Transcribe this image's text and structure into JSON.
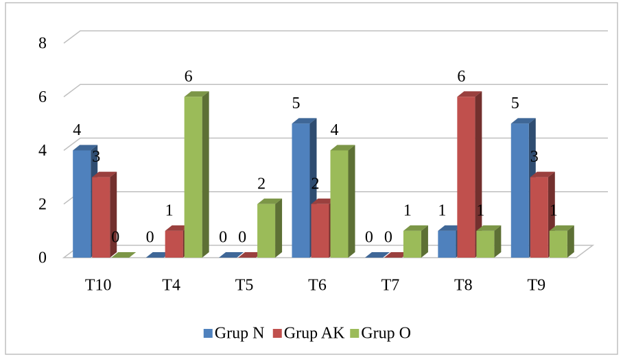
{
  "chart_data": {
    "type": "bar3d",
    "categories": [
      "T10",
      "T4",
      "T5",
      "T6",
      "T7",
      "T8",
      "T9"
    ],
    "series": [
      {
        "name": "Grup N",
        "color": "#4f81bd",
        "values": [
          4,
          0,
          0,
          5,
          0,
          1,
          5
        ]
      },
      {
        "name": "Grup AK",
        "color": "#c0504d",
        "values": [
          3,
          1,
          0,
          2,
          0,
          6,
          3
        ]
      },
      {
        "name": "Grup O",
        "color": "#9bbb59",
        "values": [
          0,
          6,
          2,
          4,
          1,
          1,
          1
        ]
      }
    ],
    "ylim": [
      0,
      8
    ],
    "yticks": [
      0,
      2,
      4,
      6,
      8
    ],
    "grid": true,
    "data_labels": true,
    "legend": "bottom"
  }
}
